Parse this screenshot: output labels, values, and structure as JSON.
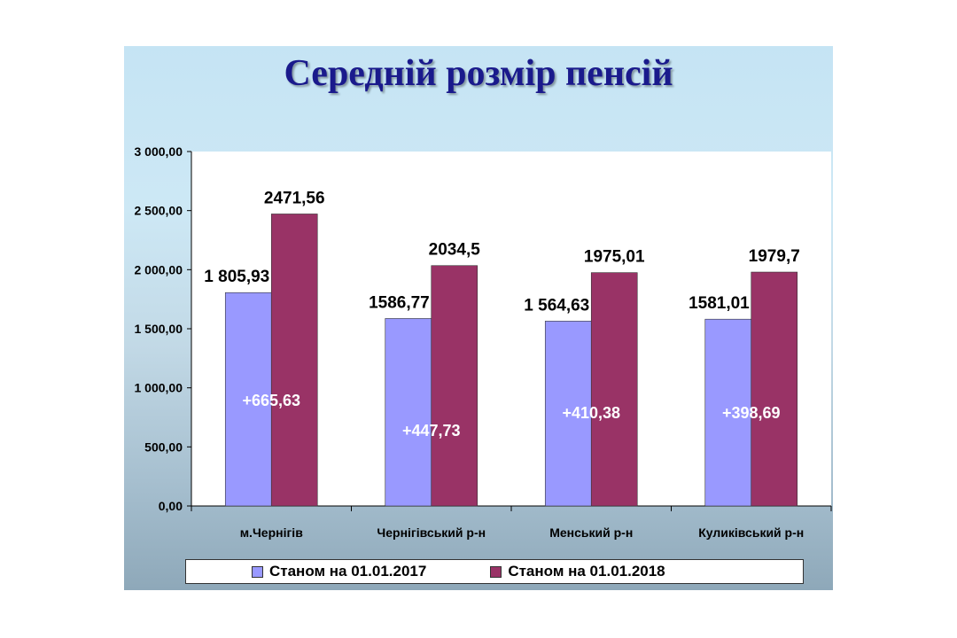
{
  "title": "Середній розмір пенсій",
  "chart_data": {
    "type": "bar",
    "categories": [
      "м.Чернігів",
      "Чернігівський р-н",
      "Менський р-н",
      "Куликівський р-н"
    ],
    "series": [
      {
        "name": "Станом на 01.01.2017",
        "values": [
          1805.93,
          1586.77,
          1564.63,
          1581.01
        ],
        "labels": [
          "1 805,93",
          "1586,77",
          "1 564,63",
          "1581,01"
        ],
        "color": "#9999ff"
      },
      {
        "name": "Станом на 01.01.2018",
        "values": [
          2471.56,
          2034.5,
          1975.01,
          1979.7
        ],
        "labels": [
          "2471,56",
          "2034,5",
          "1975,01",
          "1979,7"
        ],
        "color": "#993366"
      }
    ],
    "differences": [
      "+665,63",
      "+447,73",
      "+410,38",
      "+398,69"
    ],
    "y_ticks": [
      "0,00",
      "500,00",
      "1 000,00",
      "1 500,00",
      "2 000,00",
      "2 500,00",
      "3 000,00"
    ],
    "ylim": [
      0,
      3000
    ],
    "legend_position": "bottom",
    "grid": false
  }
}
